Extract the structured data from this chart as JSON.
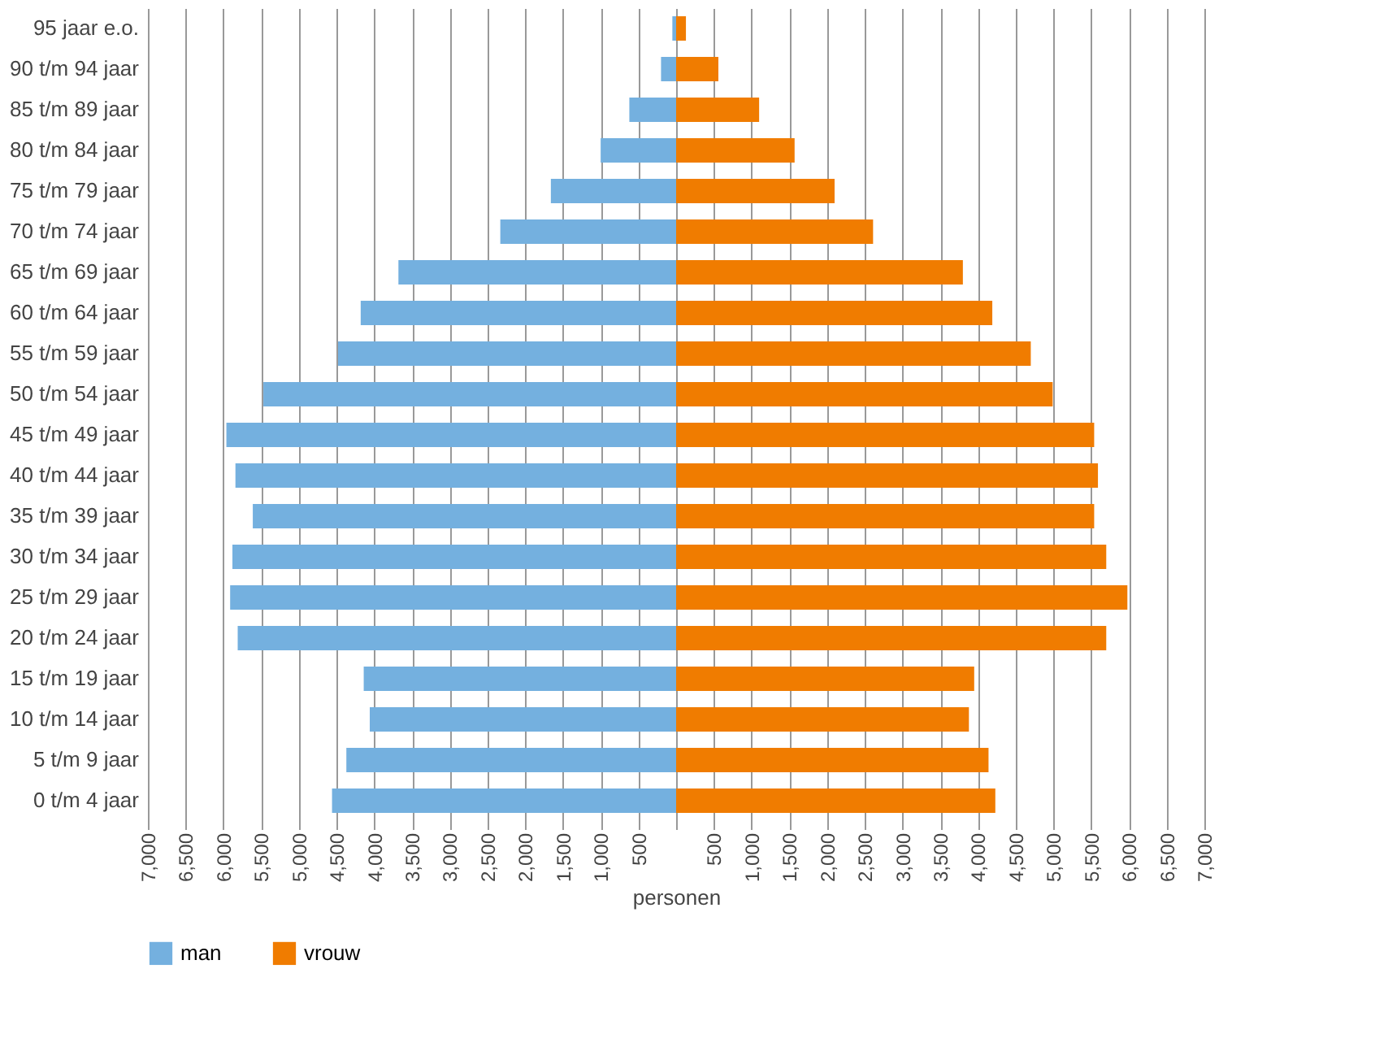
{
  "chart_data": {
    "type": "bar",
    "orientation": "horizontal",
    "xlabel": "personen",
    "categories": [
      "95 jaar e.o.",
      "90 t/m 94 jaar",
      "85 t/m 89 jaar",
      "80 t/m 84 jaar",
      "75 t/m 79 jaar",
      "70 t/m 74 jaar",
      "65 t/m 69 jaar",
      "60 t/m 64 jaar",
      "55 t/m 59 jaar",
      "50 t/m 54 jaar",
      "45 t/m 49 jaar",
      "40 t/m 44 jaar",
      "35 t/m 39 jaar",
      "30 t/m 34 jaar",
      "25 t/m 29 jaar",
      "20 t/m 24 jaar",
      "15 t/m 19 jaar",
      "10 t/m 14 jaar",
      "5 t/m 9 jaar",
      "0 t/m 4 jaar"
    ],
    "series": [
      {
        "name": "man",
        "color": "#74b0df",
        "values": [
          -50,
          -200,
          -620,
          -1000,
          -1660,
          -2330,
          -3680,
          -4180,
          -4480,
          -5470,
          -5960,
          -5840,
          -5610,
          -5880,
          -5910,
          -5810,
          -4140,
          -4060,
          -4370,
          -4560
        ]
      },
      {
        "name": "vrouw",
        "color": "#f07c00",
        "values": [
          130,
          560,
          1100,
          1570,
          2100,
          2610,
          3800,
          4190,
          4700,
          4990,
          5540,
          5590,
          5540,
          5700,
          5980,
          5700,
          3950,
          3880,
          4140,
          4230
        ]
      }
    ],
    "xlim": [
      -7000,
      7000
    ],
    "xticks": [
      {
        "value": -7000,
        "label": "7,000"
      },
      {
        "value": -6500,
        "label": "6,500"
      },
      {
        "value": -6000,
        "label": "6,000"
      },
      {
        "value": -5500,
        "label": "5,500"
      },
      {
        "value": -5000,
        "label": "5,000"
      },
      {
        "value": -4500,
        "label": "4,500"
      },
      {
        "value": -4000,
        "label": "4,000"
      },
      {
        "value": -3500,
        "label": "3,500"
      },
      {
        "value": -3000,
        "label": "3,000"
      },
      {
        "value": -2500,
        "label": "2,500"
      },
      {
        "value": -2000,
        "label": "2,000"
      },
      {
        "value": -1500,
        "label": "1,500"
      },
      {
        "value": -1000,
        "label": "1,000"
      },
      {
        "value": -500,
        "label": "500"
      },
      {
        "value": 0,
        "label": null
      },
      {
        "value": 500,
        "label": "500"
      },
      {
        "value": 1000,
        "label": "1,000"
      },
      {
        "value": 1500,
        "label": "1,500"
      },
      {
        "value": 2000,
        "label": "2,000"
      },
      {
        "value": 2500,
        "label": "2,500"
      },
      {
        "value": 3000,
        "label": "3,000"
      },
      {
        "value": 3500,
        "label": "3,500"
      },
      {
        "value": 4000,
        "label": "4,000"
      },
      {
        "value": 4500,
        "label": "4,500"
      },
      {
        "value": 5000,
        "label": "5,000"
      },
      {
        "value": 5500,
        "label": "5,500"
      },
      {
        "value": 6000,
        "label": "6,000"
      },
      {
        "value": 6500,
        "label": "6,500"
      },
      {
        "value": 7000,
        "label": "7,000"
      }
    ],
    "grid": "x",
    "legend": "bottom",
    "stacked": true
  }
}
